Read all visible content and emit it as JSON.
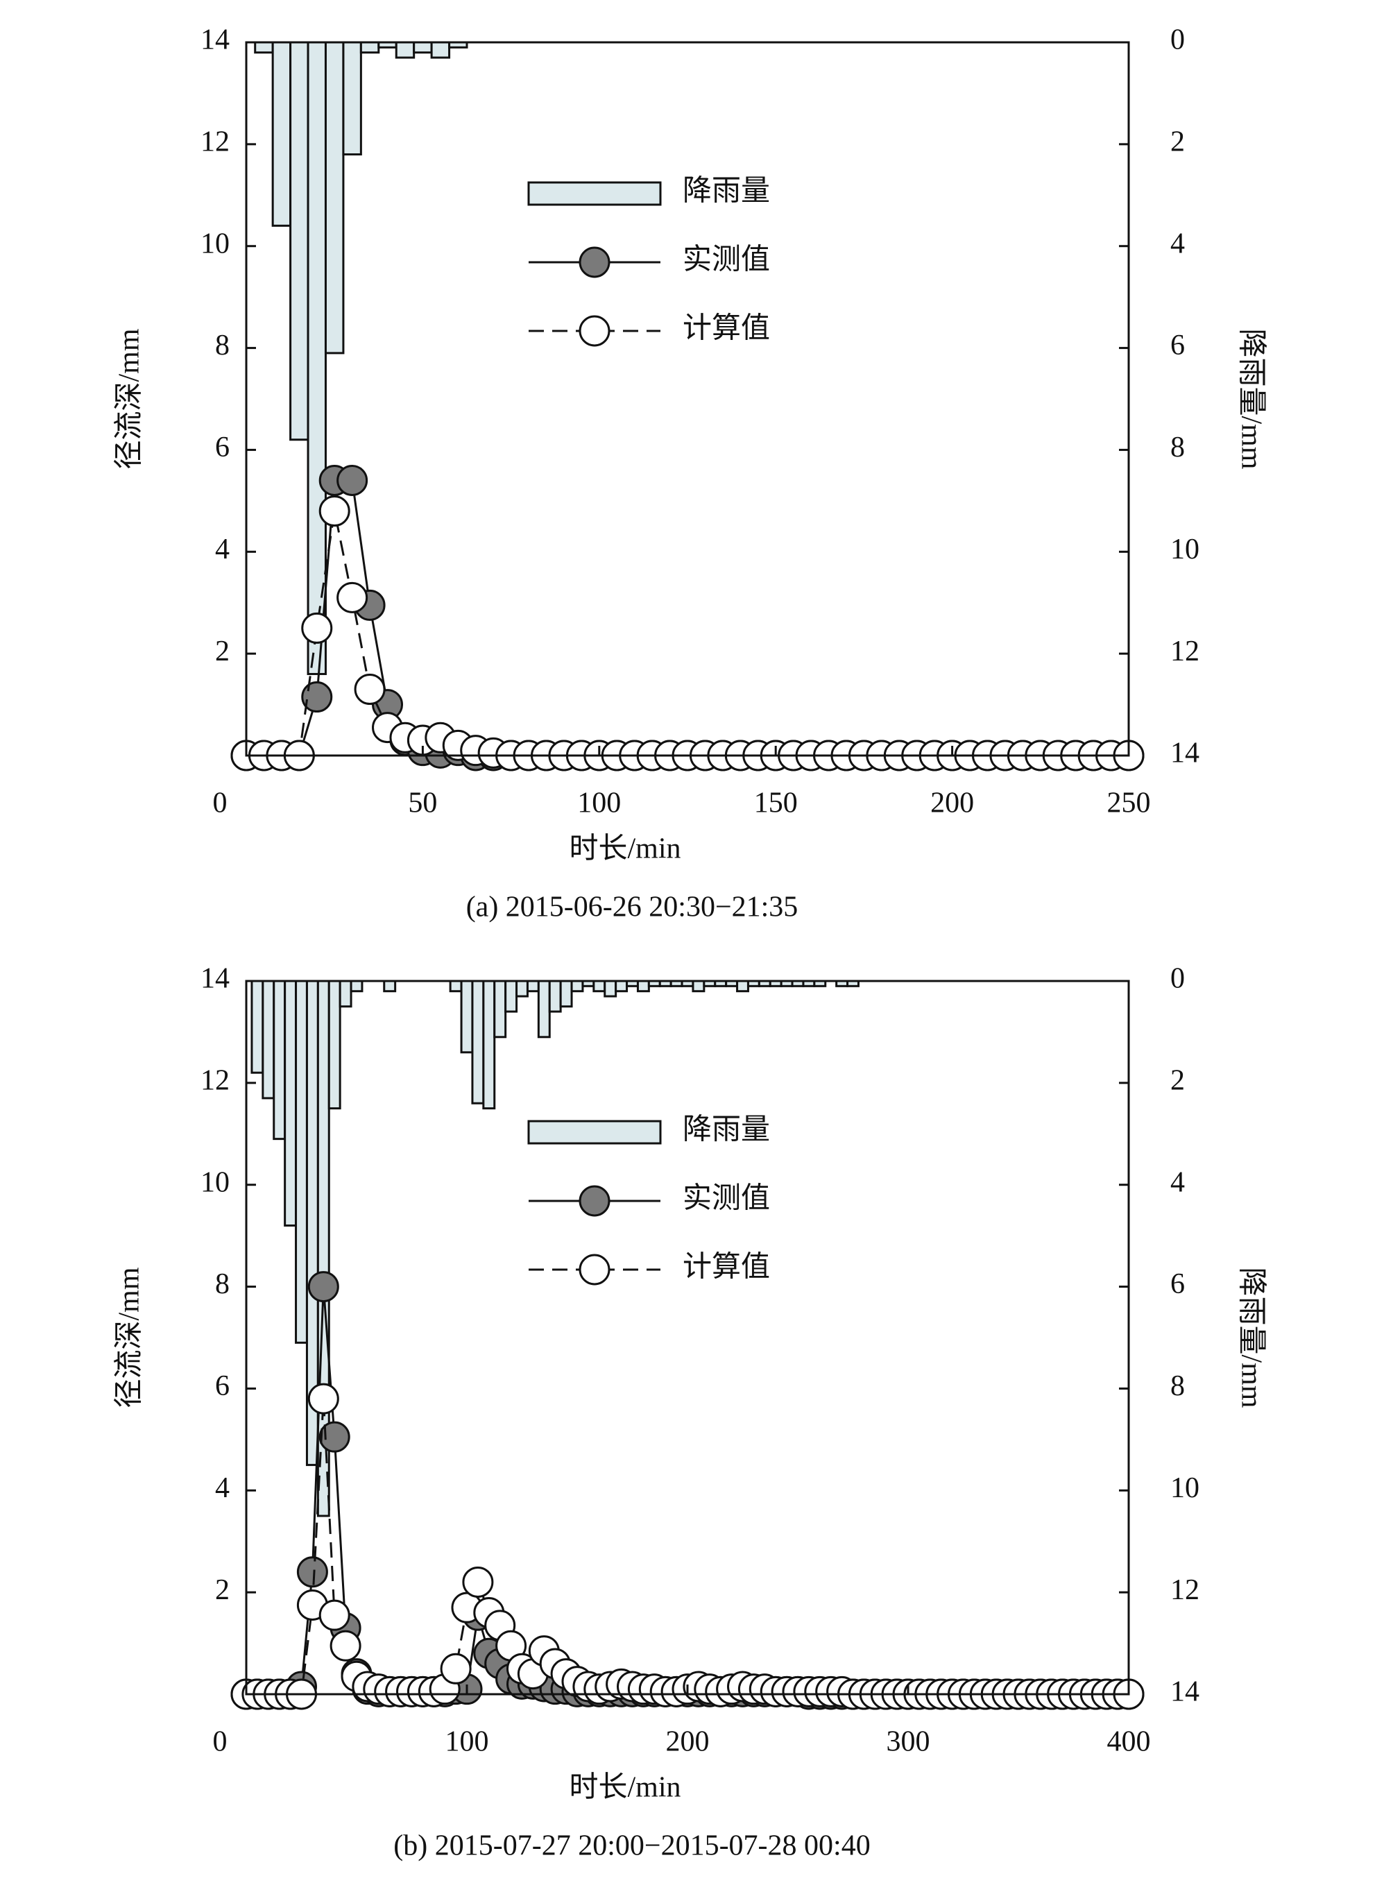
{
  "chart_data": [
    {
      "type": "combo",
      "caption": "(a) 2015-06-26 20:30−21:35",
      "xlabel": "时长/min",
      "ylabel": "径流深/mm",
      "y2label": "降雨量/mm",
      "xlim": [
        0,
        250
      ],
      "xticks": [
        0,
        50,
        100,
        150,
        200,
        250
      ],
      "ylim": [
        0,
        14
      ],
      "yticks": [
        2,
        4,
        6,
        8,
        10,
        12,
        14
      ],
      "y2lim": [
        0,
        14
      ],
      "y2ticks": [
        0,
        2,
        4,
        6,
        8,
        10,
        12,
        14
      ],
      "y2_inverted": true,
      "legend": "center",
      "x": [
        0,
        5,
        10,
        15,
        20,
        25,
        30,
        35,
        40,
        45,
        50,
        55,
        60,
        65,
        70,
        75,
        80,
        85,
        90,
        95,
        100,
        105,
        110,
        115,
        120,
        125,
        130,
        135,
        140,
        145,
        150,
        155,
        160,
        165,
        170,
        175,
        180,
        185,
        190,
        195,
        200,
        205,
        210,
        215,
        220,
        225,
        230,
        235,
        240,
        245,
        250
      ],
      "series": [
        {
          "name": "降雨量",
          "color": "#dce9ec",
          "axis": "y2",
          "kind": "bar",
          "values": [
            0,
            0.2,
            3.6,
            7.8,
            12.4,
            6.1,
            2.2,
            0.2,
            0.1,
            0.3,
            0.2,
            0.3,
            0.1,
            0,
            0,
            0,
            0,
            0,
            0,
            0,
            0,
            0,
            0,
            0,
            0,
            0,
            0,
            0,
            0,
            0,
            0,
            0,
            0,
            0,
            0,
            0,
            0,
            0,
            0,
            0,
            0,
            0,
            0,
            0,
            0,
            0,
            0,
            0,
            0,
            0,
            0
          ]
        },
        {
          "name": "实测值",
          "color": "#7a7a7a",
          "kind": "solid",
          "values": [
            0,
            0,
            0,
            0,
            1.15,
            5.4,
            5.4,
            2.95,
            1.0,
            0.3,
            0.1,
            0.05,
            0.1,
            0,
            0,
            0,
            0,
            0,
            0,
            0,
            0,
            0,
            0,
            0,
            0,
            0,
            0,
            0,
            0,
            0,
            0,
            0,
            0,
            0,
            0,
            0,
            0,
            0,
            0,
            0,
            0,
            0,
            0,
            0,
            0,
            0,
            0,
            0,
            0,
            0,
            0
          ]
        },
        {
          "name": "计算值",
          "color": "#ffffff",
          "kind": "dashed",
          "values": [
            0,
            0,
            0,
            0,
            2.5,
            4.8,
            3.1,
            1.3,
            0.55,
            0.35,
            0.3,
            0.35,
            0.2,
            0.1,
            0.05,
            0,
            0,
            0,
            0,
            0,
            0,
            0,
            0,
            0,
            0,
            0,
            0,
            0,
            0,
            0,
            0,
            0,
            0,
            0,
            0,
            0,
            0,
            0,
            0,
            0,
            0,
            0,
            0,
            0,
            0,
            0,
            0,
            0,
            0,
            0,
            0
          ]
        }
      ]
    },
    {
      "type": "combo",
      "caption": "(b) 2015-07-27 20:00−2015-07-28 00:40",
      "xlabel": "时长/min",
      "ylabel": "径流深/mm",
      "y2label": "降雨量/mm",
      "xlim": [
        0,
        400
      ],
      "xticks": [
        0,
        100,
        200,
        300,
        400
      ],
      "ylim": [
        0,
        14
      ],
      "yticks": [
        2,
        4,
        6,
        8,
        10,
        12,
        14
      ],
      "y2lim": [
        0,
        14
      ],
      "y2ticks": [
        0,
        2,
        4,
        6,
        8,
        10,
        12,
        14
      ],
      "y2_inverted": true,
      "legend": "center",
      "x": [
        0,
        5,
        10,
        15,
        20,
        25,
        30,
        35,
        40,
        45,
        50,
        55,
        60,
        65,
        70,
        75,
        80,
        85,
        90,
        95,
        100,
        105,
        110,
        115,
        120,
        125,
        130,
        135,
        140,
        145,
        150,
        155,
        160,
        165,
        170,
        175,
        180,
        185,
        190,
        195,
        200,
        205,
        210,
        215,
        220,
        225,
        230,
        235,
        240,
        245,
        250,
        255,
        260,
        265,
        270,
        275,
        280,
        285,
        290,
        295,
        300,
        305,
        310,
        315,
        320,
        325,
        330,
        335,
        340,
        345,
        350,
        355,
        360,
        365,
        370,
        375,
        380,
        385,
        390,
        395,
        400
      ],
      "series": [
        {
          "name": "降雨量",
          "color": "#dce9ec",
          "axis": "y2",
          "kind": "bar",
          "values": [
            0,
            1.8,
            2.3,
            3.1,
            4.8,
            7.1,
            9.5,
            10.5,
            2.5,
            0.5,
            0.2,
            0,
            0,
            0.2,
            0,
            0,
            0,
            0,
            0,
            0.2,
            1.4,
            2.4,
            2.5,
            1.1,
            0.6,
            0.3,
            0.2,
            1.1,
            0.6,
            0.5,
            0.2,
            0.1,
            0.2,
            0.3,
            0.2,
            0.1,
            0.2,
            0.1,
            0.1,
            0.1,
            0.1,
            0.2,
            0.1,
            0.1,
            0.1,
            0.2,
            0.1,
            0.1,
            0.1,
            0.1,
            0.1,
            0.1,
            0.1,
            0,
            0.1,
            0.1,
            0,
            0,
            0,
            0,
            0,
            0,
            0,
            0,
            0,
            0,
            0,
            0,
            0,
            0,
            0,
            0,
            0,
            0,
            0,
            0,
            0,
            0,
            0,
            0,
            0
          ]
        },
        {
          "name": "实测值",
          "color": "#7a7a7a",
          "kind": "solid",
          "values": [
            0,
            0,
            0,
            0,
            0,
            0.15,
            2.4,
            8.0,
            5.05,
            1.3,
            0.4,
            0.1,
            0.05,
            0.05,
            0.05,
            0.05,
            0.05,
            0.05,
            0.05,
            0.1,
            0.1,
            1.55,
            0.8,
            0.6,
            0.3,
            0.2,
            0.2,
            0.15,
            0.1,
            0.1,
            0.05,
            0.05,
            0.05,
            0.05,
            0.05,
            0.05,
            0.05,
            0.05,
            0.05,
            0.05,
            0.05,
            0.05,
            0.05,
            0.05,
            0.05,
            0.05,
            0.05,
            0.05,
            0.05,
            0.05,
            0.05,
            0,
            0,
            0,
            0,
            0,
            0,
            0,
            0,
            0,
            0,
            0,
            0,
            0,
            0,
            0,
            0,
            0,
            0,
            0,
            0,
            0,
            0,
            0,
            0,
            0,
            0,
            0,
            0,
            0,
            0
          ]
        },
        {
          "name": "计算值",
          "color": "#ffffff",
          "kind": "dashed",
          "values": [
            0,
            0,
            0,
            0,
            0,
            0,
            1.75,
            5.8,
            1.55,
            0.95,
            0.35,
            0.15,
            0.1,
            0.05,
            0.05,
            0.05,
            0.05,
            0.05,
            0.1,
            0.5,
            1.7,
            2.2,
            1.6,
            1.35,
            0.95,
            0.5,
            0.4,
            0.85,
            0.6,
            0.4,
            0.25,
            0.15,
            0.1,
            0.15,
            0.2,
            0.15,
            0.1,
            0.1,
            0.05,
            0.05,
            0.1,
            0.15,
            0.1,
            0.05,
            0.1,
            0.15,
            0.1,
            0.1,
            0.05,
            0.05,
            0.05,
            0.05,
            0.05,
            0.05,
            0.05,
            0,
            0,
            0,
            0,
            0,
            0,
            0,
            0,
            0,
            0,
            0,
            0,
            0,
            0,
            0,
            0,
            0,
            0,
            0,
            0,
            0,
            0,
            0,
            0,
            0,
            0
          ]
        }
      ]
    }
  ]
}
